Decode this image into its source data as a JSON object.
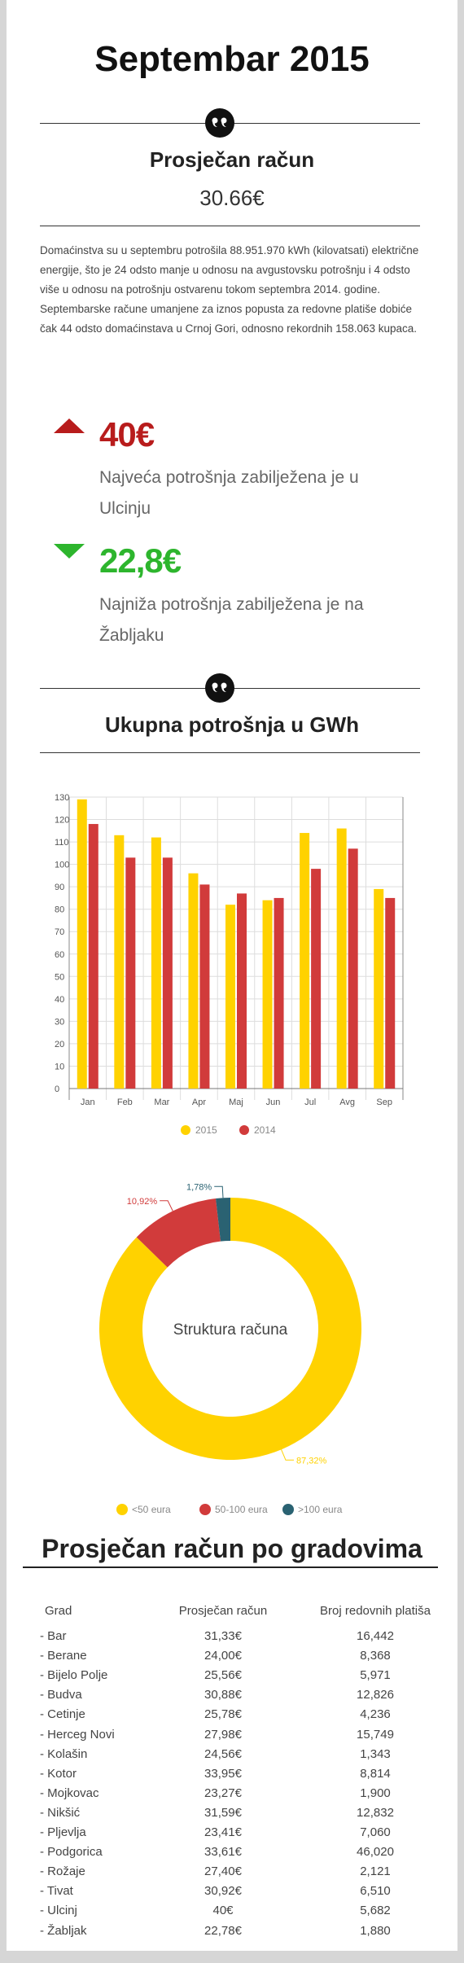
{
  "header": {
    "title": "Septembar 2015"
  },
  "summary": {
    "label": "Prosječan račun",
    "value": "30.66€",
    "paragraphs": [
      "Domaćinstva su u septembru potrošila 88.951.970 kWh (kilovatsati) električne energije, što je 24 odsto manje u odnosu na avgustovsku potrošnju  i 4 odsto više u odnosu na potrošnju ostvarenu tokom septembra 2014. godine.",
      "Septembarske račune umanjene za iznos popusta za redovne platiše dobiće  čak 44 odsto domaćinstava u Crnoj Gori, odnosno rekordnih 158.063  kupaca."
    ]
  },
  "stats": [
    {
      "value": "40€",
      "text": "Najveća potrošnja zabilježena je u Ulcinju"
    },
    {
      "value": "22,8€",
      "text": "Najniža potrošnja zabilježena je na Žabljaku"
    }
  ],
  "chart_data": [
    {
      "type": "bar",
      "title": "Ukupna potrošnja u GWh",
      "categories": [
        "Jan",
        "Feb",
        "Mar",
        "Apr",
        "Maj",
        "Jun",
        "Jul",
        "Avg",
        "Sep"
      ],
      "series": [
        {
          "name": "2015",
          "color": "#ffd200",
          "values": [
            129,
            113,
            112,
            96,
            82,
            84,
            114,
            116,
            89
          ]
        },
        {
          "name": "2014",
          "color": "#d13b3b",
          "values": [
            118,
            103,
            103,
            91,
            87,
            85,
            98,
            107,
            85
          ]
        }
      ],
      "ylim": [
        0,
        130
      ],
      "yticks": [
        0,
        10,
        20,
        30,
        40,
        50,
        60,
        70,
        80,
        90,
        100,
        110,
        120,
        130
      ],
      "grid": true
    },
    {
      "type": "pie",
      "title": "Struktura računa",
      "categories": [
        "<50 eura",
        "50-100 eura",
        ">100 eura"
      ],
      "values": [
        87.32,
        10.92,
        1.78
      ],
      "value_labels": [
        "87,32%",
        "10,92%",
        "1,78%"
      ],
      "colors": [
        "#ffd200",
        "#d13b3b",
        "#2a6272"
      ]
    }
  ],
  "table": {
    "title": "Prosječan račun po gradovima",
    "header": [
      "Grad",
      "Prosječan račun",
      "Broj redovnih platiša"
    ],
    "rows": [
      [
        "- Bar",
        "31,33€",
        "16,442"
      ],
      [
        "- Berane",
        "24,00€",
        "8,368"
      ],
      [
        "- Bijelo Polje",
        "25,56€",
        "5,971"
      ],
      [
        "- Budva",
        "30,88€",
        "12,826"
      ],
      [
        "- Cetinje",
        "25,78€",
        "4,236"
      ],
      [
        "- Herceg Novi",
        "27,98€",
        "15,749"
      ],
      [
        "- Kolašin",
        "24,56€",
        "1,343"
      ],
      [
        "- Kotor",
        "33,95€",
        "8,814"
      ],
      [
        "- Mojkovac",
        "23,27€",
        "1,900"
      ],
      [
        "- Nikšić",
        "31,59€",
        "12,832"
      ],
      [
        "- Pljevlja",
        "23,41€",
        "7,060"
      ],
      [
        "- Podgorica",
        "33,61€",
        "46,020"
      ],
      [
        "- Rožaje",
        "27,40€",
        "2,121"
      ],
      [
        "- Tivat",
        "30,92€",
        "6,510"
      ],
      [
        "- Ulcinj",
        "40€",
        "5,682"
      ],
      [
        "- Žabljak",
        "22,78€",
        "1,880"
      ]
    ]
  }
}
